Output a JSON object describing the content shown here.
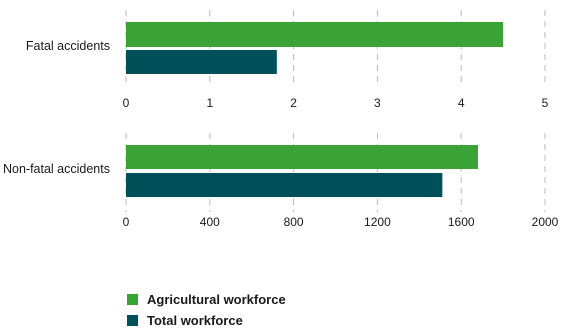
{
  "chart_data": [
    {
      "type": "bar",
      "orientation": "horizontal",
      "categories": [
        "Fatal accidents"
      ],
      "series": [
        {
          "name": "Agricultural workforce",
          "values": [
            4.5
          ]
        },
        {
          "name": "Total workforce",
          "values": [
            1.8
          ]
        }
      ],
      "xlim": [
        0,
        5
      ],
      "xticks": [
        "0",
        "1",
        "2",
        "3",
        "4",
        "5"
      ],
      "grid": true
    },
    {
      "type": "bar",
      "orientation": "horizontal",
      "categories": [
        "Non-fatal accidents"
      ],
      "series": [
        {
          "name": "Agricultural workforce",
          "values": [
            1680
          ]
        },
        {
          "name": "Total workforce",
          "values": [
            1510
          ]
        }
      ],
      "xlim": [
        0,
        2000
      ],
      "xticks": [
        "0",
        "400",
        "800",
        "1200",
        "1600",
        "2000"
      ],
      "grid": true
    }
  ],
  "colors": {
    "agricultural": "#3aa335",
    "total": "#00505a"
  },
  "legend": {
    "position": "bottom-left",
    "items": [
      {
        "label": "Agricultural workforce",
        "color": "#3aa335"
      },
      {
        "label": "Total workforce",
        "color": "#00505a"
      }
    ]
  }
}
